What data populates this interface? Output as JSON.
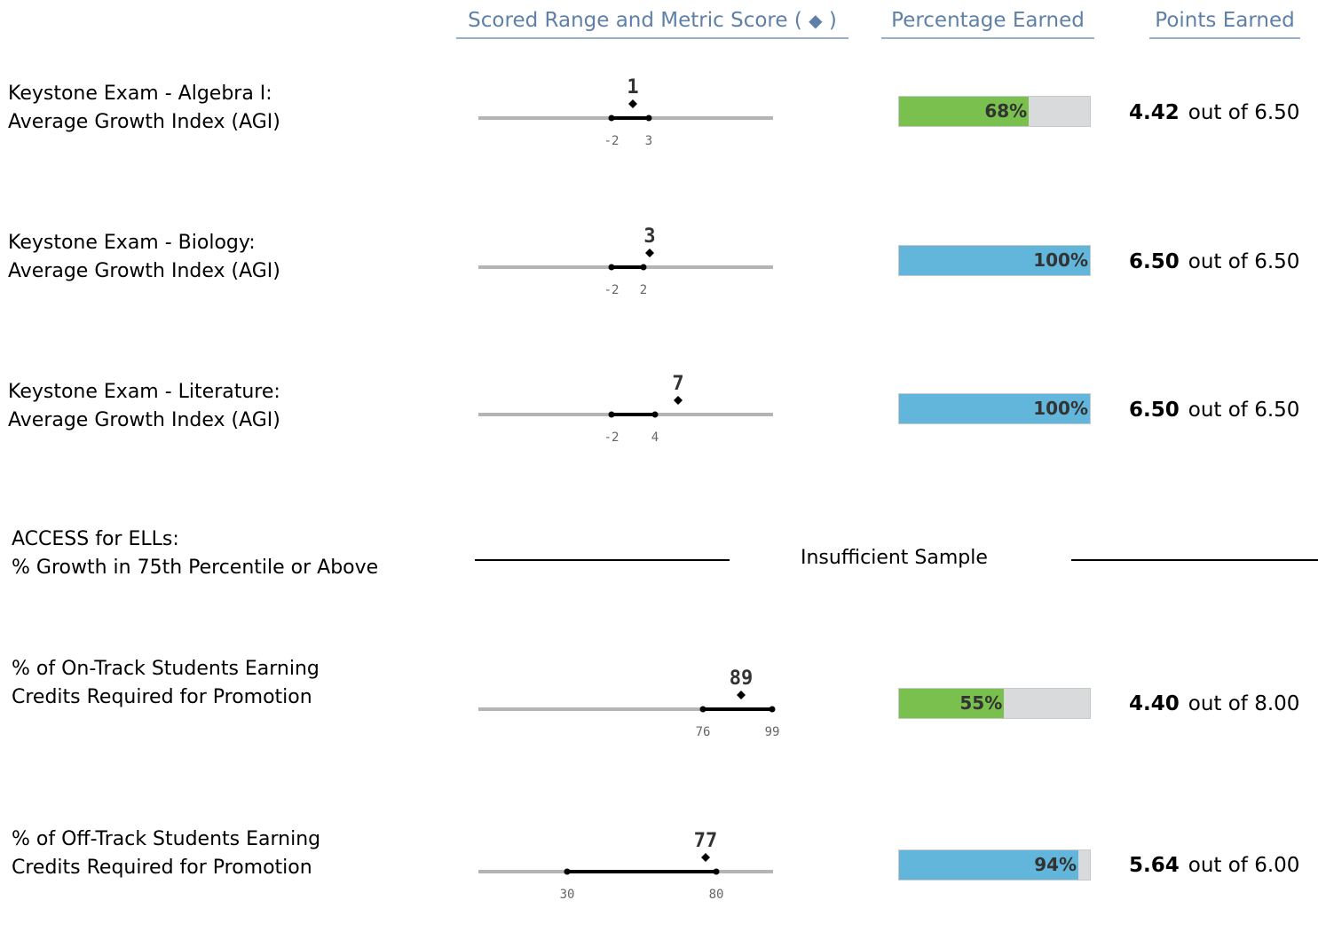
{
  "headers": {
    "scored_range": "Scored Range and Metric Score",
    "diamond": "◆",
    "percentage": "Percentage Earned",
    "points": "Points Earned"
  },
  "colors": {
    "green": "#79c04e",
    "blue": "#62b5db",
    "header": "#5f81a8"
  },
  "metrics": [
    {
      "label_line1": "Keystone Exam - Algebra I:",
      "label_line2": "Average Growth Index (AGI)",
      "range_low": "-2",
      "range_high": "3",
      "score": "1",
      "percent": 68,
      "percent_label": "68%",
      "fill_color": "green",
      "points": "4.42",
      "out_of": "out of 6.50"
    },
    {
      "label_line1": "Keystone Exam - Biology:",
      "label_line2": "Average Growth Index (AGI)",
      "range_low": "-2",
      "range_high": "2",
      "score": "3",
      "percent": 100,
      "percent_label": "100%",
      "fill_color": "blue",
      "points": "6.50",
      "out_of": "out of 6.50"
    },
    {
      "label_line1": "Keystone Exam - Literature:",
      "label_line2": "Average Growth Index (AGI)",
      "range_low": "-2",
      "range_high": "4",
      "score": "7",
      "percent": 100,
      "percent_label": "100%",
      "fill_color": "blue",
      "points": "6.50",
      "out_of": "out of 6.50"
    },
    {
      "label_line1": "ACCESS for ELLs:",
      "label_line2": "% Growth in 75th Percentile or Above",
      "status": "Insufficient Sample"
    },
    {
      "label_line1": "% of On-Track Students Earning",
      "label_line2": "Credits Required for Promotion",
      "range_low": "76",
      "range_high": "99",
      "score": "89",
      "percent": 55,
      "percent_label": "55%",
      "fill_color": "green",
      "points": "4.40",
      "out_of": "out of 8.00"
    },
    {
      "label_line1": "% of Off-Track Students Earning",
      "label_line2": "Credits Required for Promotion",
      "range_low": "30",
      "range_high": "80",
      "score": "77",
      "percent": 94,
      "percent_label": "94%",
      "fill_color": "blue",
      "points": "5.64",
      "out_of": "out of 6.00"
    }
  ]
}
